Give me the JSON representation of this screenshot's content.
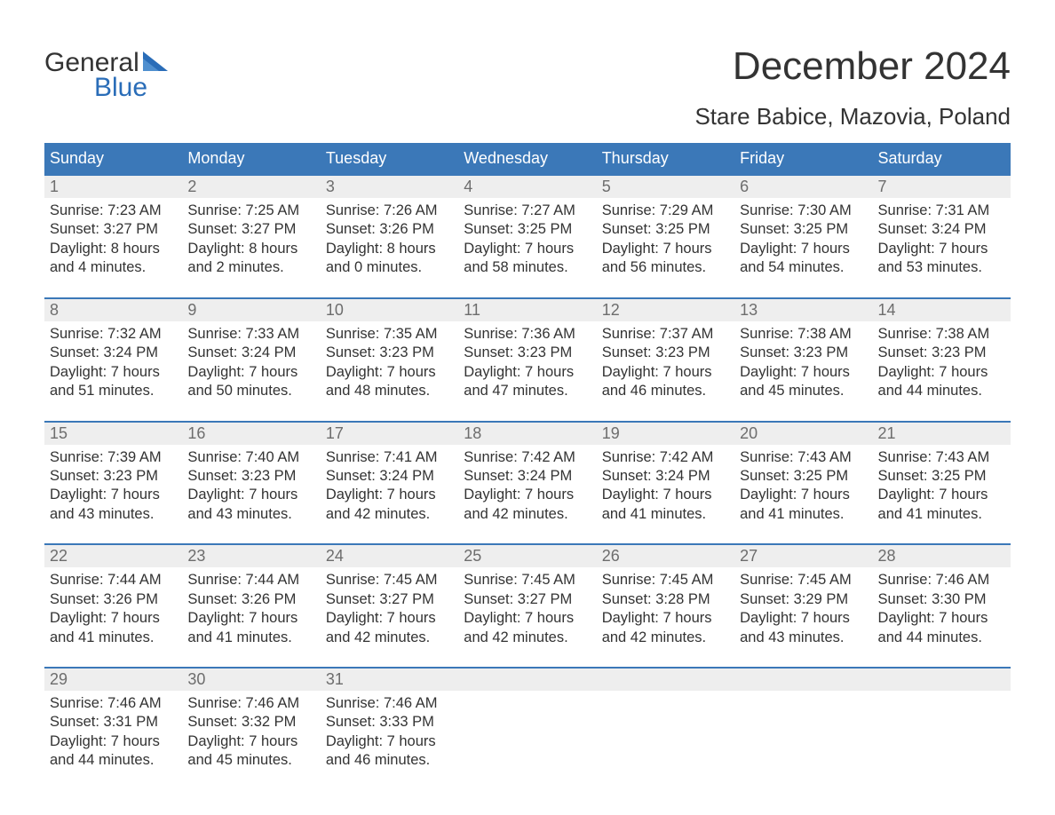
{
  "brand": {
    "word1": "General",
    "word2": "Blue",
    "text_color": "#333333",
    "accent_color": "#2a6db8"
  },
  "header": {
    "month_title": "December 2024",
    "location": "Stare Babice, Mazovia, Poland"
  },
  "colors": {
    "header_bg": "#3b78b8",
    "header_text": "#ffffff",
    "daynum_bg": "#eeeeee",
    "daynum_text": "#6d6d6d",
    "body_text": "#333333",
    "page_bg": "#ffffff",
    "row_border": "#3b78b8"
  },
  "weekdays": [
    "Sunday",
    "Monday",
    "Tuesday",
    "Wednesday",
    "Thursday",
    "Friday",
    "Saturday"
  ],
  "labels": {
    "sunrise": "Sunrise:",
    "sunset": "Sunset:",
    "daylight": "Daylight:"
  },
  "weeks": [
    [
      {
        "day": "1",
        "sunrise": "7:23 AM",
        "sunset": "3:27 PM",
        "daylight_h": "8 hours",
        "daylight_m": "and 4 minutes."
      },
      {
        "day": "2",
        "sunrise": "7:25 AM",
        "sunset": "3:27 PM",
        "daylight_h": "8 hours",
        "daylight_m": "and 2 minutes."
      },
      {
        "day": "3",
        "sunrise": "7:26 AM",
        "sunset": "3:26 PM",
        "daylight_h": "8 hours",
        "daylight_m": "and 0 minutes."
      },
      {
        "day": "4",
        "sunrise": "7:27 AM",
        "sunset": "3:25 PM",
        "daylight_h": "7 hours",
        "daylight_m": "and 58 minutes."
      },
      {
        "day": "5",
        "sunrise": "7:29 AM",
        "sunset": "3:25 PM",
        "daylight_h": "7 hours",
        "daylight_m": "and 56 minutes."
      },
      {
        "day": "6",
        "sunrise": "7:30 AM",
        "sunset": "3:25 PM",
        "daylight_h": "7 hours",
        "daylight_m": "and 54 minutes."
      },
      {
        "day": "7",
        "sunrise": "7:31 AM",
        "sunset": "3:24 PM",
        "daylight_h": "7 hours",
        "daylight_m": "and 53 minutes."
      }
    ],
    [
      {
        "day": "8",
        "sunrise": "7:32 AM",
        "sunset": "3:24 PM",
        "daylight_h": "7 hours",
        "daylight_m": "and 51 minutes."
      },
      {
        "day": "9",
        "sunrise": "7:33 AM",
        "sunset": "3:24 PM",
        "daylight_h": "7 hours",
        "daylight_m": "and 50 minutes."
      },
      {
        "day": "10",
        "sunrise": "7:35 AM",
        "sunset": "3:23 PM",
        "daylight_h": "7 hours",
        "daylight_m": "and 48 minutes."
      },
      {
        "day": "11",
        "sunrise": "7:36 AM",
        "sunset": "3:23 PM",
        "daylight_h": "7 hours",
        "daylight_m": "and 47 minutes."
      },
      {
        "day": "12",
        "sunrise": "7:37 AM",
        "sunset": "3:23 PM",
        "daylight_h": "7 hours",
        "daylight_m": "and 46 minutes."
      },
      {
        "day": "13",
        "sunrise": "7:38 AM",
        "sunset": "3:23 PM",
        "daylight_h": "7 hours",
        "daylight_m": "and 45 minutes."
      },
      {
        "day": "14",
        "sunrise": "7:38 AM",
        "sunset": "3:23 PM",
        "daylight_h": "7 hours",
        "daylight_m": "and 44 minutes."
      }
    ],
    [
      {
        "day": "15",
        "sunrise": "7:39 AM",
        "sunset": "3:23 PM",
        "daylight_h": "7 hours",
        "daylight_m": "and 43 minutes."
      },
      {
        "day": "16",
        "sunrise": "7:40 AM",
        "sunset": "3:23 PM",
        "daylight_h": "7 hours",
        "daylight_m": "and 43 minutes."
      },
      {
        "day": "17",
        "sunrise": "7:41 AM",
        "sunset": "3:24 PM",
        "daylight_h": "7 hours",
        "daylight_m": "and 42 minutes."
      },
      {
        "day": "18",
        "sunrise": "7:42 AM",
        "sunset": "3:24 PM",
        "daylight_h": "7 hours",
        "daylight_m": "and 42 minutes."
      },
      {
        "day": "19",
        "sunrise": "7:42 AM",
        "sunset": "3:24 PM",
        "daylight_h": "7 hours",
        "daylight_m": "and 41 minutes."
      },
      {
        "day": "20",
        "sunrise": "7:43 AM",
        "sunset": "3:25 PM",
        "daylight_h": "7 hours",
        "daylight_m": "and 41 minutes."
      },
      {
        "day": "21",
        "sunrise": "7:43 AM",
        "sunset": "3:25 PM",
        "daylight_h": "7 hours",
        "daylight_m": "and 41 minutes."
      }
    ],
    [
      {
        "day": "22",
        "sunrise": "7:44 AM",
        "sunset": "3:26 PM",
        "daylight_h": "7 hours",
        "daylight_m": "and 41 minutes."
      },
      {
        "day": "23",
        "sunrise": "7:44 AM",
        "sunset": "3:26 PM",
        "daylight_h": "7 hours",
        "daylight_m": "and 41 minutes."
      },
      {
        "day": "24",
        "sunrise": "7:45 AM",
        "sunset": "3:27 PM",
        "daylight_h": "7 hours",
        "daylight_m": "and 42 minutes."
      },
      {
        "day": "25",
        "sunrise": "7:45 AM",
        "sunset": "3:27 PM",
        "daylight_h": "7 hours",
        "daylight_m": "and 42 minutes."
      },
      {
        "day": "26",
        "sunrise": "7:45 AM",
        "sunset": "3:28 PM",
        "daylight_h": "7 hours",
        "daylight_m": "and 42 minutes."
      },
      {
        "day": "27",
        "sunrise": "7:45 AM",
        "sunset": "3:29 PM",
        "daylight_h": "7 hours",
        "daylight_m": "and 43 minutes."
      },
      {
        "day": "28",
        "sunrise": "7:46 AM",
        "sunset": "3:30 PM",
        "daylight_h": "7 hours",
        "daylight_m": "and 44 minutes."
      }
    ],
    [
      {
        "day": "29",
        "sunrise": "7:46 AM",
        "sunset": "3:31 PM",
        "daylight_h": "7 hours",
        "daylight_m": "and 44 minutes."
      },
      {
        "day": "30",
        "sunrise": "7:46 AM",
        "sunset": "3:32 PM",
        "daylight_h": "7 hours",
        "daylight_m": "and 45 minutes."
      },
      {
        "day": "31",
        "sunrise": "7:46 AM",
        "sunset": "3:33 PM",
        "daylight_h": "7 hours",
        "daylight_m": "and 46 minutes."
      },
      null,
      null,
      null,
      null
    ]
  ]
}
